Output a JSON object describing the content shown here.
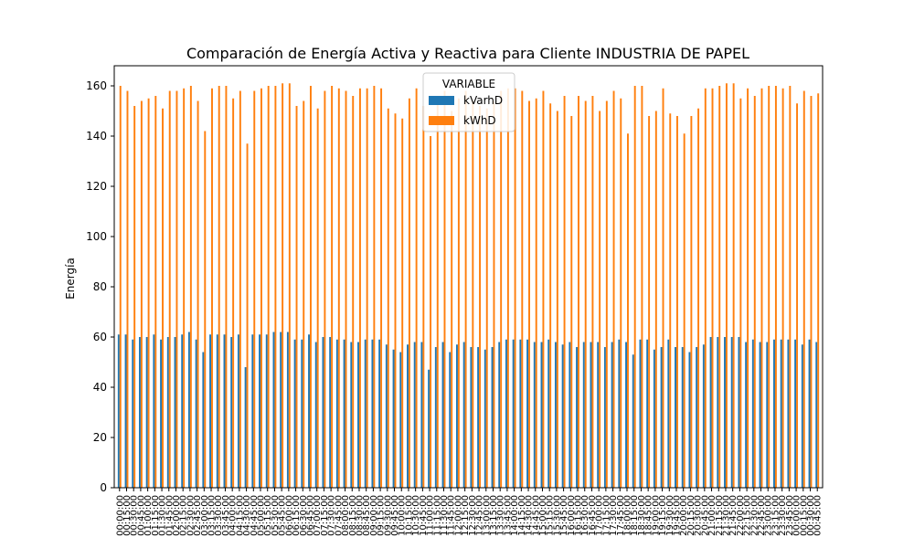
{
  "chart_data": {
    "type": "bar",
    "title": "Comparación de Energía Activa y Reactiva para Cliente INDUSTRIA DE PAPEL",
    "xlabel": "",
    "ylabel": "Energía",
    "ylim": [
      0,
      168
    ],
    "yticks": [
      0,
      20,
      40,
      60,
      80,
      100,
      120,
      140,
      160
    ],
    "legend": {
      "title": "VARIABLE",
      "placement": "top-center"
    },
    "categories": [
      "00:00:00",
      "00:15:00",
      "00:30:00",
      "00:45:00",
      "01:00:00",
      "01:15:00",
      "01:30:00",
      "01:45:00",
      "02:00:00",
      "02:15:00",
      "02:30:00",
      "02:45:00",
      "03:00:00",
      "03:15:00",
      "03:30:00",
      "03:45:00",
      "04:00:00",
      "04:15:00",
      "04:30:00",
      "04:45:00",
      "05:00:00",
      "05:15:00",
      "05:30:00",
      "05:45:00",
      "06:00:00",
      "06:15:00",
      "06:30:00",
      "06:45:00",
      "07:00:00",
      "07:15:00",
      "07:30:00",
      "07:45:00",
      "08:00:00",
      "08:15:00",
      "08:30:00",
      "08:45:00",
      "09:00:00",
      "09:15:00",
      "09:30:00",
      "09:45:00",
      "10:00:00",
      "10:15:00",
      "10:30:00",
      "10:45:00",
      "11:00:00",
      "11:15:00",
      "11:30:00",
      "11:45:00",
      "12:00:00",
      "12:15:00",
      "12:30:00",
      "12:45:00",
      "13:00:00",
      "13:15:00",
      "13:30:00",
      "13:45:00",
      "14:00:00",
      "14:15:00",
      "14:30:00",
      "14:45:00",
      "15:00:00",
      "15:15:00",
      "15:30:00",
      "15:45:00",
      "16:00:00",
      "16:15:00",
      "16:30:00",
      "16:45:00",
      "17:00:00",
      "17:15:00",
      "17:30:00",
      "17:45:00",
      "18:00:00",
      "18:15:00",
      "18:30:00",
      "18:45:00",
      "19:00:00",
      "19:15:00",
      "19:30:00",
      "19:45:00",
      "20:00:00",
      "20:15:00",
      "20:30:00",
      "20:45:00",
      "21:00:00",
      "21:15:00",
      "21:30:00",
      "21:45:00",
      "22:00:00",
      "22:15:00",
      "22:30:00",
      "22:45:00",
      "23:00:00",
      "23:15:00",
      "23:30:00",
      "23:45:00",
      "00:00:00",
      "00:15:00",
      "00:30:00",
      "00:45:00"
    ],
    "series": [
      {
        "name": "kVarhD",
        "color": "#1f77b4",
        "values": [
          61,
          61,
          59,
          60,
          60,
          61,
          59,
          60,
          60,
          61,
          62,
          59,
          54,
          61,
          61,
          61,
          60,
          61,
          48,
          61,
          61,
          61,
          62,
          62,
          62,
          59,
          59,
          61,
          58,
          60,
          60,
          59,
          59,
          58,
          58,
          59,
          59,
          59,
          57,
          55,
          54,
          57,
          58,
          58,
          47,
          56,
          58,
          54,
          57,
          58,
          56,
          56,
          55,
          56,
          58,
          59,
          59,
          59,
          59,
          58,
          58,
          59,
          58,
          57,
          58,
          56,
          58,
          58,
          58,
          56,
          58,
          59,
          58,
          53,
          59,
          59,
          55,
          56,
          59,
          56,
          56,
          54,
          56,
          57,
          60,
          60,
          60,
          60,
          60,
          58,
          59,
          58,
          58,
          59,
          59,
          59,
          59,
          57,
          59,
          58
        ]
      },
      {
        "name": "kWhD",
        "color": "#ff7f0e",
        "values": [
          160,
          158,
          152,
          154,
          155,
          156,
          151,
          158,
          158,
          159,
          160,
          154,
          142,
          159,
          160,
          160,
          155,
          158,
          137,
          158,
          159,
          160,
          160,
          161,
          161,
          152,
          154,
          160,
          151,
          158,
          160,
          159,
          158,
          156,
          159,
          159,
          160,
          159,
          151,
          149,
          147,
          155,
          159,
          152,
          140,
          156,
          158,
          150,
          155,
          158,
          154,
          152,
          151,
          154,
          158,
          159,
          159,
          158,
          154,
          155,
          158,
          153,
          150,
          156,
          148,
          156,
          154,
          156,
          150,
          154,
          158,
          155,
          141,
          160,
          160,
          148,
          150,
          159,
          149,
          148,
          141,
          148,
          151,
          159,
          159,
          160,
          161,
          161,
          155,
          159,
          156,
          159,
          160,
          160,
          159,
          160,
          153,
          158,
          156,
          157
        ]
      }
    ]
  }
}
